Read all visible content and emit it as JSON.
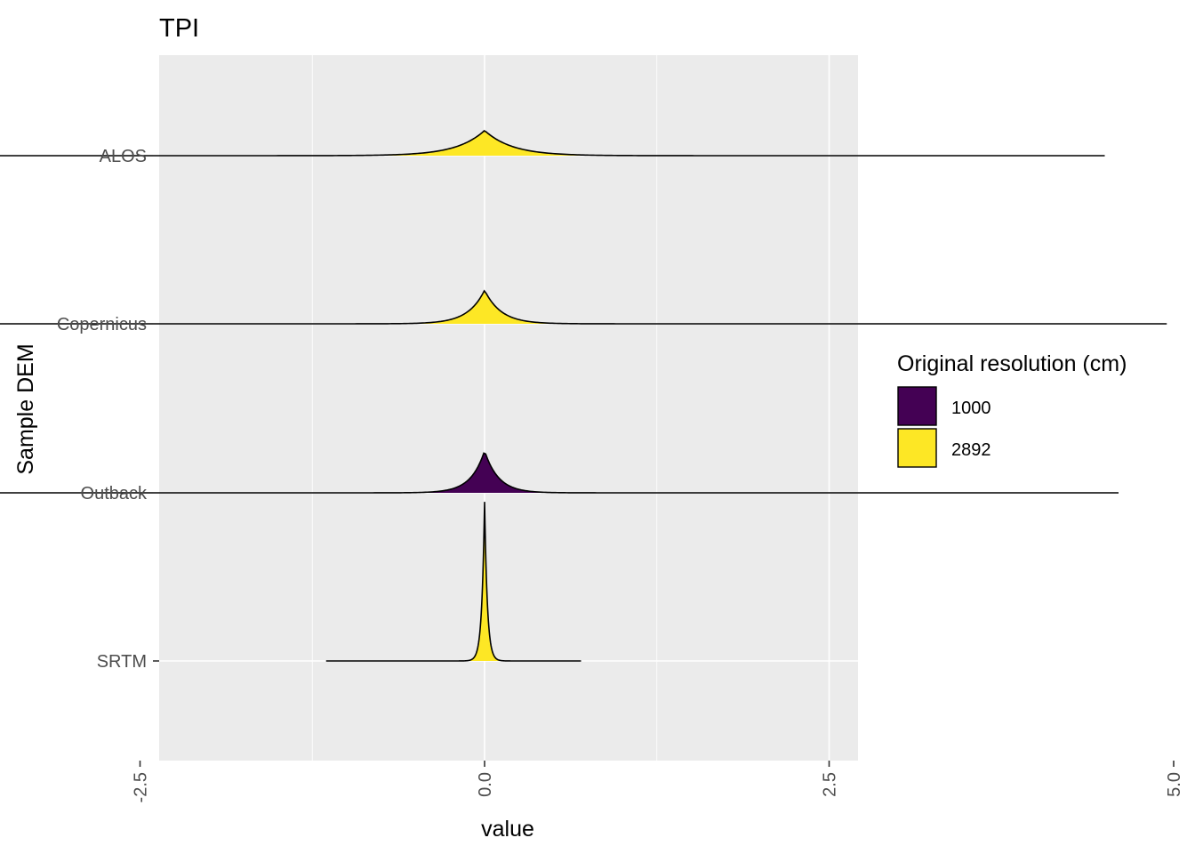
{
  "chart_data": {
    "type": "ridgeline",
    "title": "TPI",
    "xlabel": "value",
    "ylabel": "Sample DEM",
    "xlim": [
      -4.7,
      5.4
    ],
    "x_ticks": [
      -2.5,
      0.0,
      2.5,
      5.0
    ],
    "x_tick_labels": [
      "-2.5",
      "0.0",
      "2.5",
      "5.0"
    ],
    "x_tick_label_rotation": "vertical",
    "categories": [
      "ALOS",
      "Copernicus",
      "Outback",
      "SRTM"
    ],
    "background_color": "#EBEBEB",
    "grid": true,
    "legend": {
      "title": "Original resolution (cm)",
      "position": "right",
      "items": [
        {
          "label": "1000",
          "color": "#440154"
        },
        {
          "label": "2892",
          "color": "#FDE725"
        }
      ]
    },
    "series": [
      {
        "category": "ALOS",
        "group": "2892",
        "color": "#FDE725",
        "x_min": -4.3,
        "x_max": 4.5,
        "center": 0.0,
        "spread": 0.2,
        "peak_height": 0.15
      },
      {
        "category": "Copernicus",
        "group": "2892",
        "color": "#FDE725",
        "x_min": -4.0,
        "x_max": 4.95,
        "center": 0.0,
        "spread": 0.12,
        "peak_height": 0.2
      },
      {
        "category": "Outback",
        "group": "1000",
        "color": "#440154",
        "x_min": -3.6,
        "x_max": 4.6,
        "center": 0.0,
        "spread": 0.1,
        "peak_height": 0.25
      },
      {
        "category": "SRTM",
        "group": "2892",
        "color": "#FDE725",
        "x_min": -1.15,
        "x_max": 0.7,
        "center": 0.0,
        "spread": 0.02,
        "peak_height": 0.95
      }
    ]
  }
}
